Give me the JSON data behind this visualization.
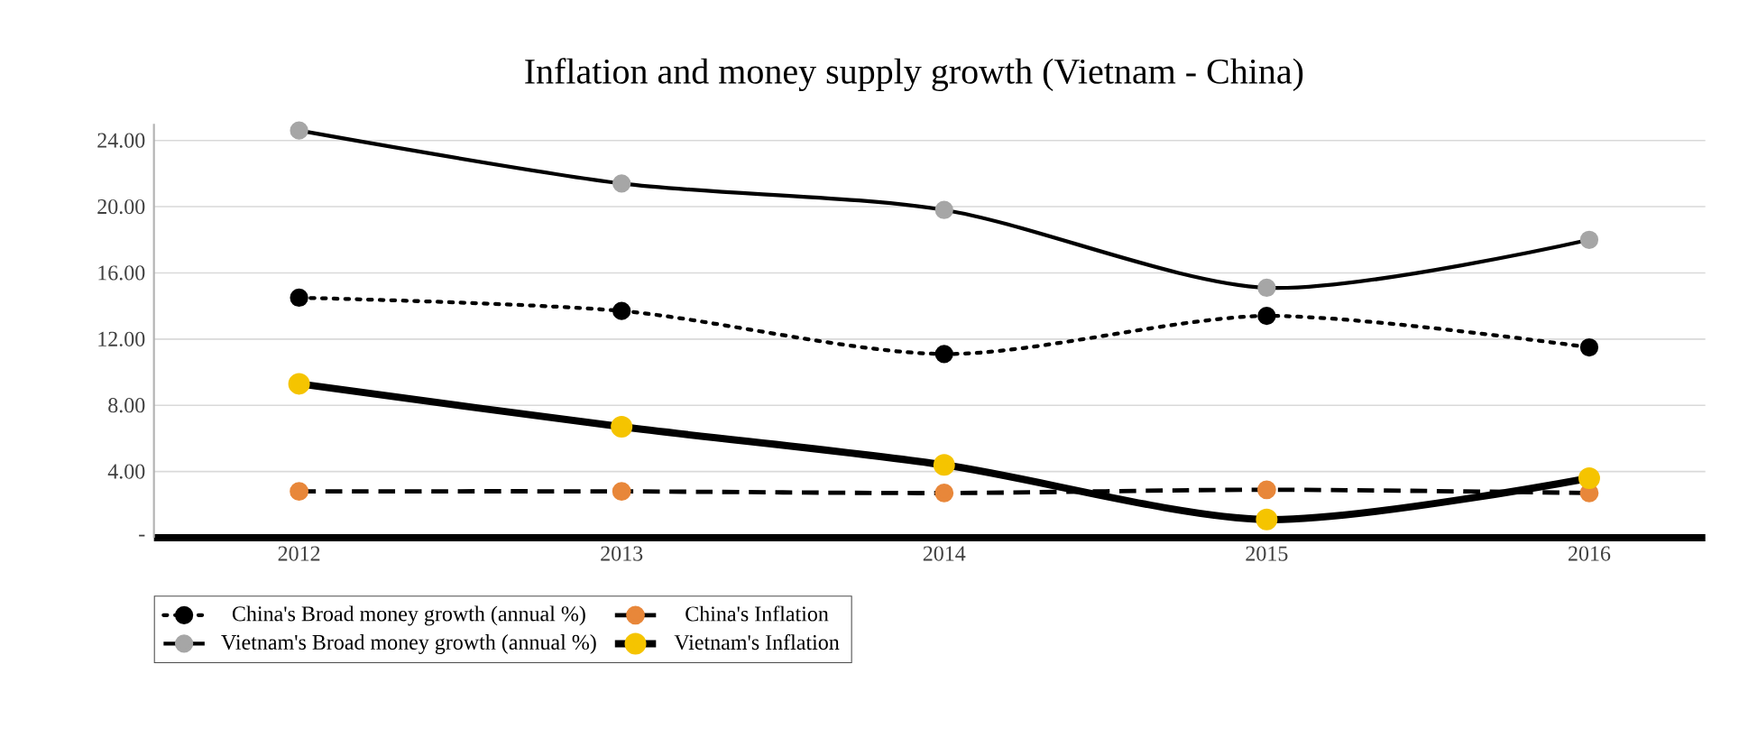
{
  "chart_data": {
    "type": "line",
    "title": "Inflation and money supply growth (Vietnam - China)",
    "categories": [
      "2012",
      "2013",
      "2014",
      "2015",
      "2016"
    ],
    "series": [
      {
        "name": "China's Broad money growth (annual %)",
        "color": "#000000",
        "line_style": "dotted",
        "values": [
          14.5,
          13.7,
          11.1,
          13.4,
          11.5
        ]
      },
      {
        "name": "China's Inflation",
        "color": "#e8873a",
        "line_style": "dashed",
        "values": [
          2.8,
          2.8,
          2.7,
          2.9,
          2.7
        ]
      },
      {
        "name": "Vietnam's Broad money growth (annual %)",
        "color": "#a6a6a6",
        "line_style": "solid",
        "values": [
          24.6,
          21.4,
          19.8,
          15.1,
          18.0
        ]
      },
      {
        "name": "Vietnam's Inflation",
        "color": "#f5c400",
        "line_style": "solid",
        "values": [
          9.3,
          6.7,
          4.4,
          1.1,
          3.6
        ]
      }
    ],
    "ylim": [
      0,
      25
    ],
    "yticks": [
      {
        "value": 0,
        "label": "-"
      },
      {
        "value": 4,
        "label": "4.00"
      },
      {
        "value": 8,
        "label": "8.00"
      },
      {
        "value": 12,
        "label": "12.00"
      },
      {
        "value": 16,
        "label": "16.00"
      },
      {
        "value": 20,
        "label": "20.00"
      },
      {
        "value": 24,
        "label": "24.00"
      }
    ],
    "grid": "y",
    "legend": "bottom",
    "marker": "circle"
  }
}
